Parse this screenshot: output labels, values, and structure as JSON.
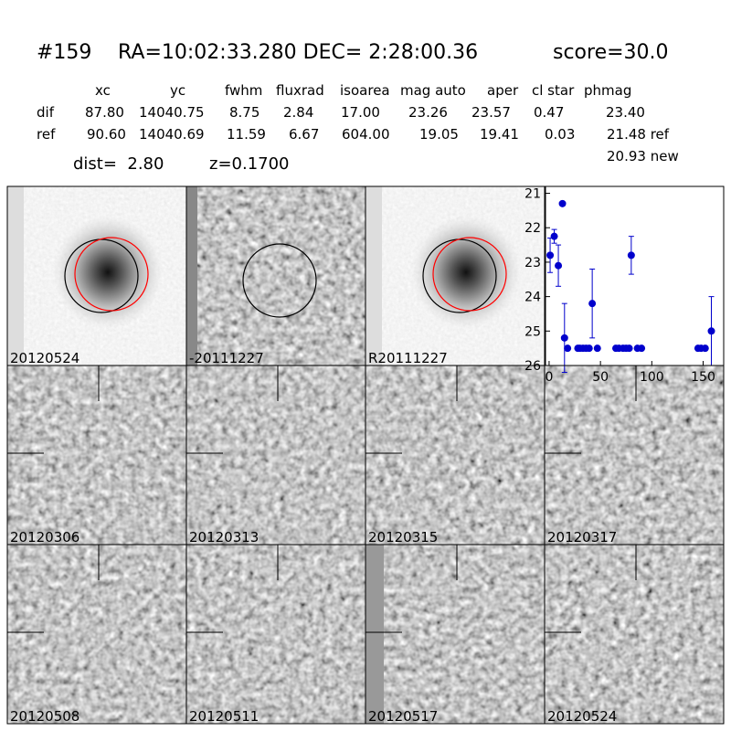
{
  "header": {
    "id": "#159",
    "coords": "RA=10:02:33.280 DEC= 2:28:00.36",
    "score": "score=30.0"
  },
  "table": {
    "columns": [
      "xc",
      "yc",
      "fwhm",
      "fluxrad",
      "isoarea",
      "mag auto",
      "aper",
      "cl star",
      "phmag"
    ],
    "rows": [
      [
        "dif",
        "87.80",
        "14040.75",
        "8.75",
        "2.84",
        "17.00",
        "23.26",
        "23.57",
        "0.47",
        "23.40"
      ],
      [
        "ref",
        "90.60",
        "14040.69",
        "11.59",
        "6.67",
        "604.00",
        "19.05",
        "19.41",
        "0.03",
        "21.48 ref"
      ]
    ],
    "extra": "20.93 new"
  },
  "dist": "dist=  2.80",
  "redshift": "z=0.1700",
  "panels": [
    "20120524",
    "-20111227",
    "R20111227",
    "20120306",
    "20120313",
    "20120315",
    "20120317",
    "20120508",
    "20120511",
    "20120517",
    "20120524"
  ],
  "highlight_color": "#ff0000",
  "chart_data": {
    "type": "scatter",
    "xlim": [
      -3.5,
      170
    ],
    "ylim": [
      26,
      20.8
    ],
    "xticks": [
      0,
      50,
      100,
      150
    ],
    "yticks": [
      21,
      22,
      23,
      24,
      25,
      26
    ],
    "series": [
      {
        "color": "#0000cc",
        "x": [
          1,
          5,
          9,
          13,
          15,
          18,
          28,
          30,
          33,
          36,
          39,
          42,
          47,
          65,
          68,
          72,
          75,
          78,
          80,
          86,
          90,
          145,
          148,
          152,
          158
        ],
        "y": [
          22.8,
          22.25,
          23.1,
          21.3,
          25.2,
          25.5,
          25.5,
          25.5,
          25.5,
          25.5,
          25.5,
          24.2,
          25.5,
          25.5,
          25.5,
          25.5,
          25.5,
          25.5,
          22.8,
          25.5,
          25.5,
          25.5,
          25.5,
          25.5,
          25.0
        ],
        "err": [
          0.5,
          0.2,
          0.6,
          0.05,
          1.0,
          0.05,
          0.05,
          0.05,
          0.05,
          0.05,
          0.05,
          1.0,
          0.05,
          0.05,
          0.05,
          0.05,
          0.05,
          0.05,
          0.55,
          0.05,
          0.05,
          0.05,
          0.05,
          0.05,
          1.0
        ]
      }
    ]
  }
}
